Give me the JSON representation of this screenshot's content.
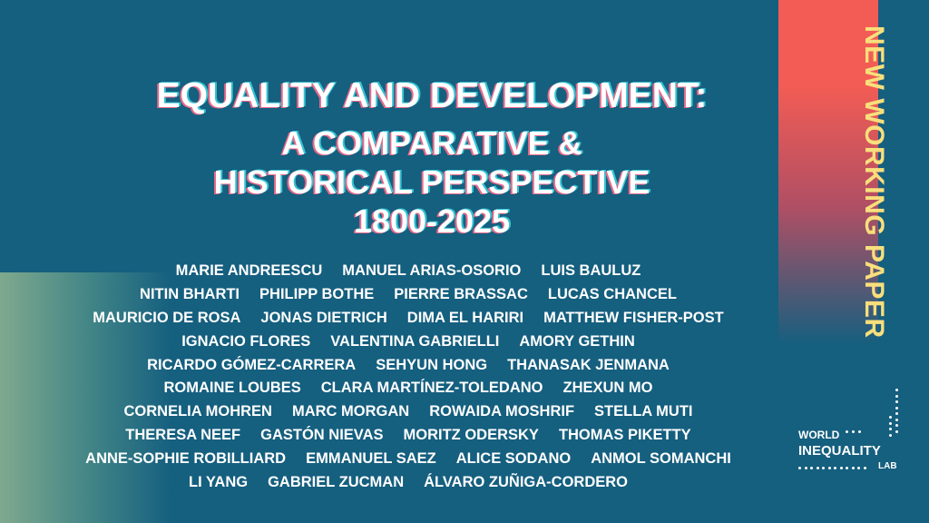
{
  "banner": "NEW WORKING PAPER",
  "title": [
    "EQUALITY AND DEVELOPMENT:",
    "A COMPARATIVE &",
    "HISTORICAL PERSPECTIVE",
    "1800-2025"
  ],
  "authors": [
    [
      "MARIE ANDREESCU",
      "MANUEL ARIAS-OSORIO",
      "LUIS BAULUZ"
    ],
    [
      "NITIN BHARTI",
      "PHILIPP BOTHE",
      "PIERRE BRASSAC",
      "LUCAS CHANCEL"
    ],
    [
      "MAURICIO DE ROSA",
      "JONAS DIETRICH",
      "DIMA EL HARIRI",
      "MATTHEW FISHER-POST"
    ],
    [
      "IGNACIO FLORES",
      "VALENTINA GABRIELLI",
      "AMORY GETHIN"
    ],
    [
      "RICARDO GÓMEZ-CARRERA",
      "SEHYUN HONG",
      "THANASAK JENMANA"
    ],
    [
      "ROMAINE LOUBES",
      "CLARA MARTÍNEZ-TOLEDANO",
      "ZHEXUN MO"
    ],
    [
      "CORNELIA MOHREN",
      "MARC MORGAN",
      "ROWAIDA MOSHRIF",
      "STELLA MUTI"
    ],
    [
      "THERESA NEEF",
      "GASTÓN NIEVAS",
      "MORITZ ODERSKY",
      "THOMAS PIKETTY"
    ],
    [
      "ANNE-SOPHIE ROBILLIARD",
      "EMMANUEL SAEZ",
      "ALICE SODANO",
      "ANMOL SOMANCHI"
    ],
    [
      "LI YANG",
      "GABRIEL ZUCMAN",
      "ÁLVARO ZUÑIGA-CORDERO"
    ]
  ],
  "logo": [
    "WORLD",
    "INEQUALITY",
    "LAB"
  ]
}
